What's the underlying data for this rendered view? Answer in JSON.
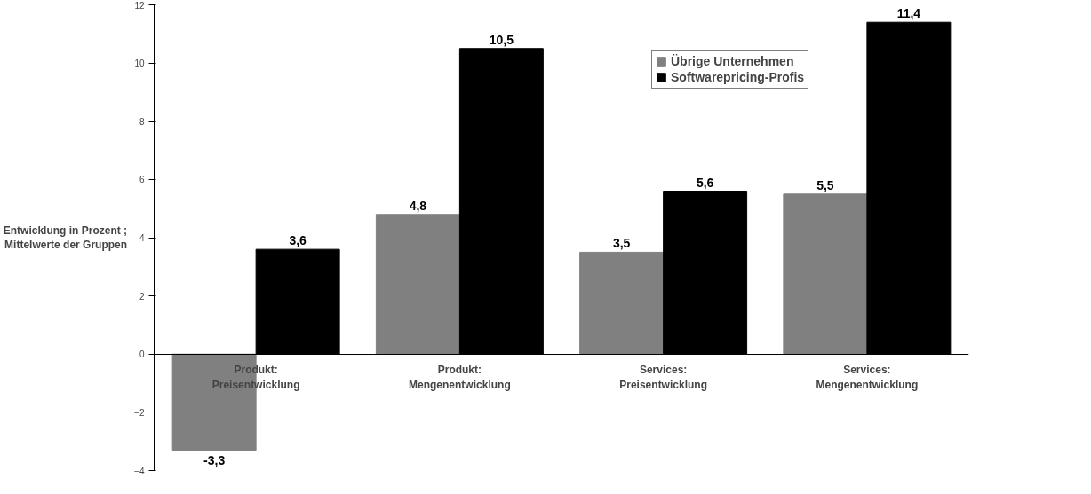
{
  "chart_data": {
    "type": "bar",
    "ylabel": "Entwicklung in Prozent ;\nMittelwerte der Gruppen",
    "categories": [
      "Produkt:\nPreisentwicklung",
      "Produkt:\nMengenentwicklung",
      "Services:\nPreisentwicklung",
      "Services:\nMengenentwicklung"
    ],
    "series": [
      {
        "name": "Übrige Unternehmen",
        "color": "#808080",
        "values": [
          -3.3,
          4.8,
          3.5,
          5.5
        ],
        "value_labels": [
          "-3,3",
          "4,8",
          "3,5",
          "5,5"
        ]
      },
      {
        "name": "Softwarepricing-Profis",
        "color": "#000000",
        "values": [
          3.6,
          10.5,
          5.6,
          11.4
        ],
        "value_labels": [
          "3,6",
          "10,5",
          "5,6",
          "11,4"
        ]
      }
    ],
    "ylim": [
      -4,
      12
    ],
    "yticks": [
      -4,
      -2,
      0,
      2,
      4,
      6,
      8,
      10,
      12
    ],
    "grid": false,
    "legend": "top right"
  }
}
